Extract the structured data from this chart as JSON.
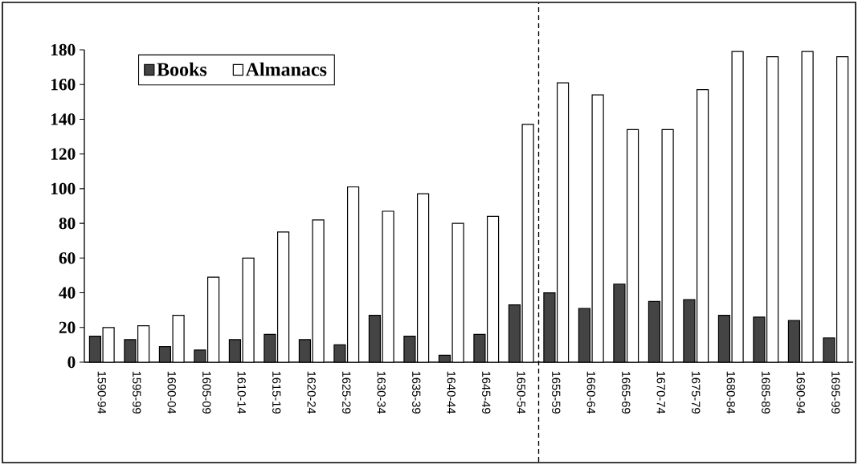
{
  "chart_data": {
    "type": "bar",
    "categories": [
      "1590-94",
      "1595-99",
      "1600-04",
      "1605-09",
      "1610-14",
      "1615-19",
      "1620-24",
      "1625-29",
      "1630-34",
      "1635-39",
      "1640-44",
      "1645-49",
      "1650-54",
      "1655-59",
      "1660-64",
      "1665-69",
      "1670-74",
      "1675-79",
      "1680-84",
      "1685-89",
      "1690-94",
      "1695-99"
    ],
    "series": [
      {
        "name": "Books",
        "color": "#444444",
        "values": [
          15,
          13,
          9,
          7,
          13,
          16,
          13,
          10,
          27,
          15,
          4,
          16,
          33,
          40,
          31,
          45,
          35,
          36,
          27,
          26,
          24,
          14
        ]
      },
      {
        "name": "Almanacs",
        "color": "#ffffff",
        "values": [
          20,
          21,
          27,
          49,
          60,
          75,
          82,
          101,
          87,
          97,
          80,
          84,
          137,
          161,
          154,
          134,
          134,
          157,
          179,
          176,
          179,
          176
        ]
      }
    ],
    "ylim": [
      0,
      180
    ],
    "yticks": [
      0,
      20,
      40,
      60,
      80,
      100,
      120,
      140,
      160,
      180
    ],
    "legend": "top left",
    "grid": false
  }
}
